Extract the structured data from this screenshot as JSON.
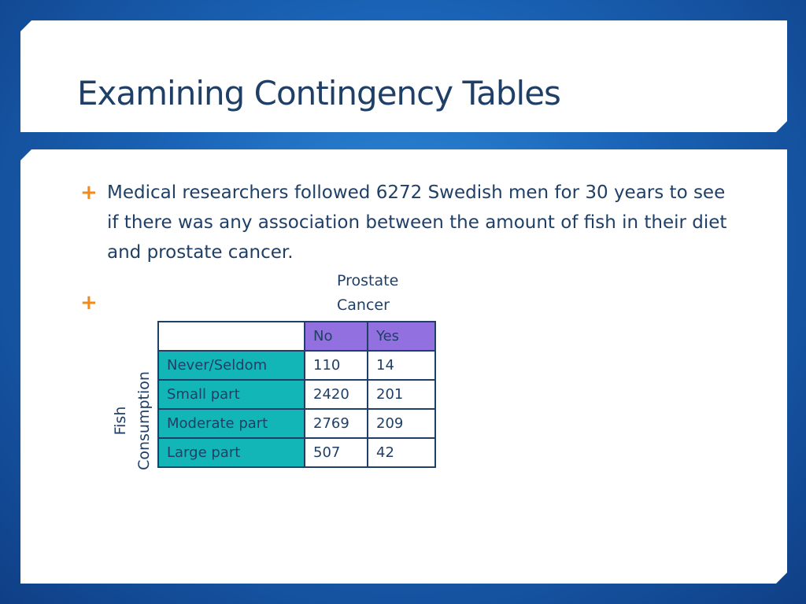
{
  "slide": {
    "title": "Examining Contingency Tables",
    "bullets": [
      {
        "marker": "+",
        "text": "Medical researchers followed 6272 Swedish men for 30 years to see if there was any association between the amount of fish in their diet and prostate cancer."
      },
      {
        "marker": "+",
        "text": ""
      }
    ]
  },
  "table": {
    "column_variable": "Prostate\nCancer",
    "row_variable": "Fish\nConsumption",
    "columns": [
      "No",
      "Yes"
    ],
    "rows": [
      {
        "label": "Never/Seldom",
        "values": [
          "110",
          "14"
        ]
      },
      {
        "label": "Small part",
        "values": [
          "2420",
          "201"
        ]
      },
      {
        "label": "Moderate part",
        "values": [
          "2769",
          "209"
        ]
      },
      {
        "label": "Large part",
        "values": [
          "507",
          "42"
        ]
      }
    ]
  },
  "colors": {
    "background": "#1a63b6",
    "title_text": "#1f3f66",
    "bullet_marker": "#f28a1a",
    "column_header_fill": "#9370e0",
    "row_header_fill": "#13b6b6"
  }
}
